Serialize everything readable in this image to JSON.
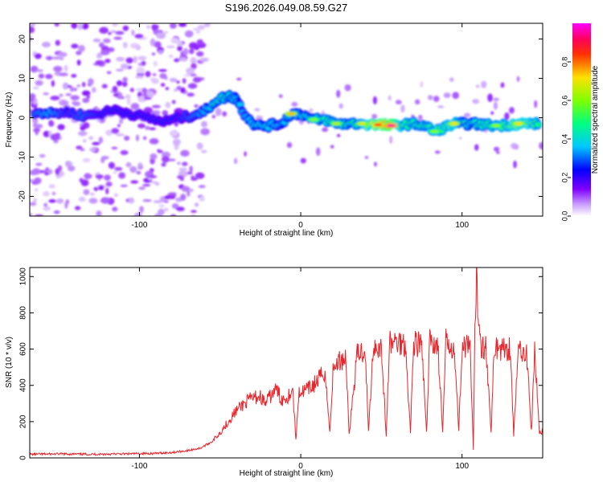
{
  "title": "S196.2026.049.08.59.G27",
  "colors": {
    "snr_line": "#e8252b",
    "axis": "#000000",
    "background": "#ffffff"
  },
  "chart_data": [
    {
      "type": "heatmap",
      "name": "spectrogram",
      "xlabel": "Height of straight line (km)",
      "ylabel": "Frequency (Hz)",
      "xlim": [
        -168,
        150
      ],
      "ylim": [
        -25,
        24
      ],
      "xticks": [
        -100,
        0,
        100
      ],
      "yticks": [
        20,
        10,
        0,
        -10,
        -20
      ],
      "grid": false,
      "colorbar": {
        "label": "Normalized spectral amplitude",
        "range": [
          0,
          1
        ],
        "ticks": [
          0.0,
          0.2,
          0.4,
          0.6,
          0.8
        ],
        "colormap": [
          "#ffffff",
          "#a020f0",
          "#0000ff",
          "#00ffff",
          "#00ff00",
          "#ffff00",
          "#ff0000",
          "#ff00ff"
        ]
      },
      "ridge": [
        {
          "x": -165,
          "y": 1.5,
          "a": 0.35
        },
        {
          "x": -155,
          "y": 1.0,
          "a": 0.4
        },
        {
          "x": -145,
          "y": 1.5,
          "a": 0.3
        },
        {
          "x": -135,
          "y": 0.5,
          "a": 0.35
        },
        {
          "x": -125,
          "y": 1.0,
          "a": 0.3
        },
        {
          "x": -115,
          "y": 2.0,
          "a": 0.3
        },
        {
          "x": -105,
          "y": 1.0,
          "a": 0.3
        },
        {
          "x": -95,
          "y": 0.0,
          "a": 0.3
        },
        {
          "x": -85,
          "y": -1.0,
          "a": 0.3
        },
        {
          "x": -75,
          "y": 0.0,
          "a": 0.3
        },
        {
          "x": -68,
          "y": 0.5,
          "a": 0.35
        },
        {
          "x": -60,
          "y": 1.5,
          "a": 0.4
        },
        {
          "x": -52,
          "y": 4.5,
          "a": 0.5
        },
        {
          "x": -45,
          "y": 5.5,
          "a": 0.5
        },
        {
          "x": -40,
          "y": 5.0,
          "a": 0.45
        },
        {
          "x": -35,
          "y": 1.0,
          "a": 0.4
        },
        {
          "x": -28,
          "y": -2.0,
          "a": 0.45
        },
        {
          "x": -20,
          "y": -2.0,
          "a": 0.45
        },
        {
          "x": -12,
          "y": -1.5,
          "a": 0.4
        },
        {
          "x": -6,
          "y": 1.0,
          "a": 0.5
        },
        {
          "x": 0,
          "y": 1.0,
          "a": 0.45
        },
        {
          "x": 8,
          "y": -0.5,
          "a": 0.5
        },
        {
          "x": 15,
          "y": -0.5,
          "a": 0.55
        },
        {
          "x": 22,
          "y": -1.5,
          "a": 0.55
        },
        {
          "x": 30,
          "y": -1.5,
          "a": 0.5
        },
        {
          "x": 38,
          "y": -1.5,
          "a": 0.6
        },
        {
          "x": 48,
          "y": -1.8,
          "a": 0.85
        },
        {
          "x": 56,
          "y": -2.0,
          "a": 0.95
        },
        {
          "x": 63,
          "y": -1.8,
          "a": 0.6
        },
        {
          "x": 70,
          "y": -1.5,
          "a": 0.55
        },
        {
          "x": 77,
          "y": -2.0,
          "a": 0.55
        },
        {
          "x": 83,
          "y": -3.5,
          "a": 0.6
        },
        {
          "x": 89,
          "y": -2.5,
          "a": 0.6
        },
        {
          "x": 95,
          "y": -1.5,
          "a": 0.65
        },
        {
          "x": 101,
          "y": -1.5,
          "a": 0.5
        },
        {
          "x": 107,
          "y": -1.5,
          "a": 0.5
        },
        {
          "x": 114,
          "y": -1.8,
          "a": 0.55
        },
        {
          "x": 121,
          "y": -2.0,
          "a": 0.6
        },
        {
          "x": 128,
          "y": -1.8,
          "a": 0.6
        },
        {
          "x": 135,
          "y": -1.5,
          "a": 0.7
        },
        {
          "x": 142,
          "y": -1.5,
          "a": 0.65
        },
        {
          "x": 148,
          "y": -1.5,
          "a": 0.55
        }
      ],
      "peaks": [
        {
          "x": 56,
          "y": -2.0,
          "a": 0.95
        },
        {
          "x": 48,
          "y": -1.8,
          "a": 0.85
        },
        {
          "x": 38,
          "y": -1.5,
          "a": 0.7
        },
        {
          "x": -6,
          "y": 1.0,
          "a": 0.75
        },
        {
          "x": 95,
          "y": -1.5,
          "a": 0.72
        },
        {
          "x": 135,
          "y": -1.5,
          "a": 0.72
        },
        {
          "x": 22,
          "y": -1.5,
          "a": 0.65
        },
        {
          "x": 83,
          "y": -3.5,
          "a": 0.6
        },
        {
          "x": 121,
          "y": -2.0,
          "a": 0.62
        },
        {
          "x": 8,
          "y": -0.5,
          "a": 0.6
        }
      ]
    },
    {
      "type": "line",
      "name": "snr",
      "xlabel": "Height of straight line (km)",
      "ylabel": "SNR (10 * v/v)",
      "xlim": [
        -168,
        150
      ],
      "ylim": [
        0,
        1050
      ],
      "xticks": [
        -100,
        0,
        100
      ],
      "yticks": [
        0,
        200,
        400,
        600,
        800,
        1000
      ],
      "grid": false,
      "series": [
        {
          "name": "SNR",
          "x": [
            -168,
            -150,
            -130,
            -110,
            -90,
            -80,
            -70,
            -62,
            -55,
            -50,
            -45,
            -40,
            -35,
            -30,
            -25,
            -22,
            -18,
            -15,
            -12,
            -8,
            -5,
            -3,
            -1,
            0,
            5,
            10,
            15,
            18,
            20,
            22,
            25,
            28,
            30,
            35,
            40,
            42,
            45,
            50,
            53,
            55,
            60,
            65,
            68,
            70,
            75,
            78,
            80,
            85,
            88,
            90,
            95,
            98,
            100,
            105,
            107,
            108,
            109,
            110,
            112,
            115,
            118,
            120,
            125,
            130,
            132,
            135,
            140,
            143,
            145,
            148,
            150
          ],
          "y": [
            20,
            22,
            20,
            22,
            25,
            30,
            40,
            55,
            90,
            140,
            200,
            260,
            300,
            330,
            340,
            300,
            350,
            380,
            320,
            340,
            380,
            100,
            380,
            360,
            380,
            420,
            480,
            140,
            470,
            520,
            540,
            560,
            130,
            570,
            600,
            140,
            620,
            610,
            120,
            630,
            640,
            630,
            140,
            640,
            620,
            130,
            650,
            620,
            140,
            640,
            620,
            150,
            620,
            600,
            40,
            700,
            1000,
            800,
            620,
            610,
            130,
            620,
            600,
            610,
            130,
            600,
            590,
            140,
            600,
            140,
            150
          ]
        }
      ]
    }
  ]
}
